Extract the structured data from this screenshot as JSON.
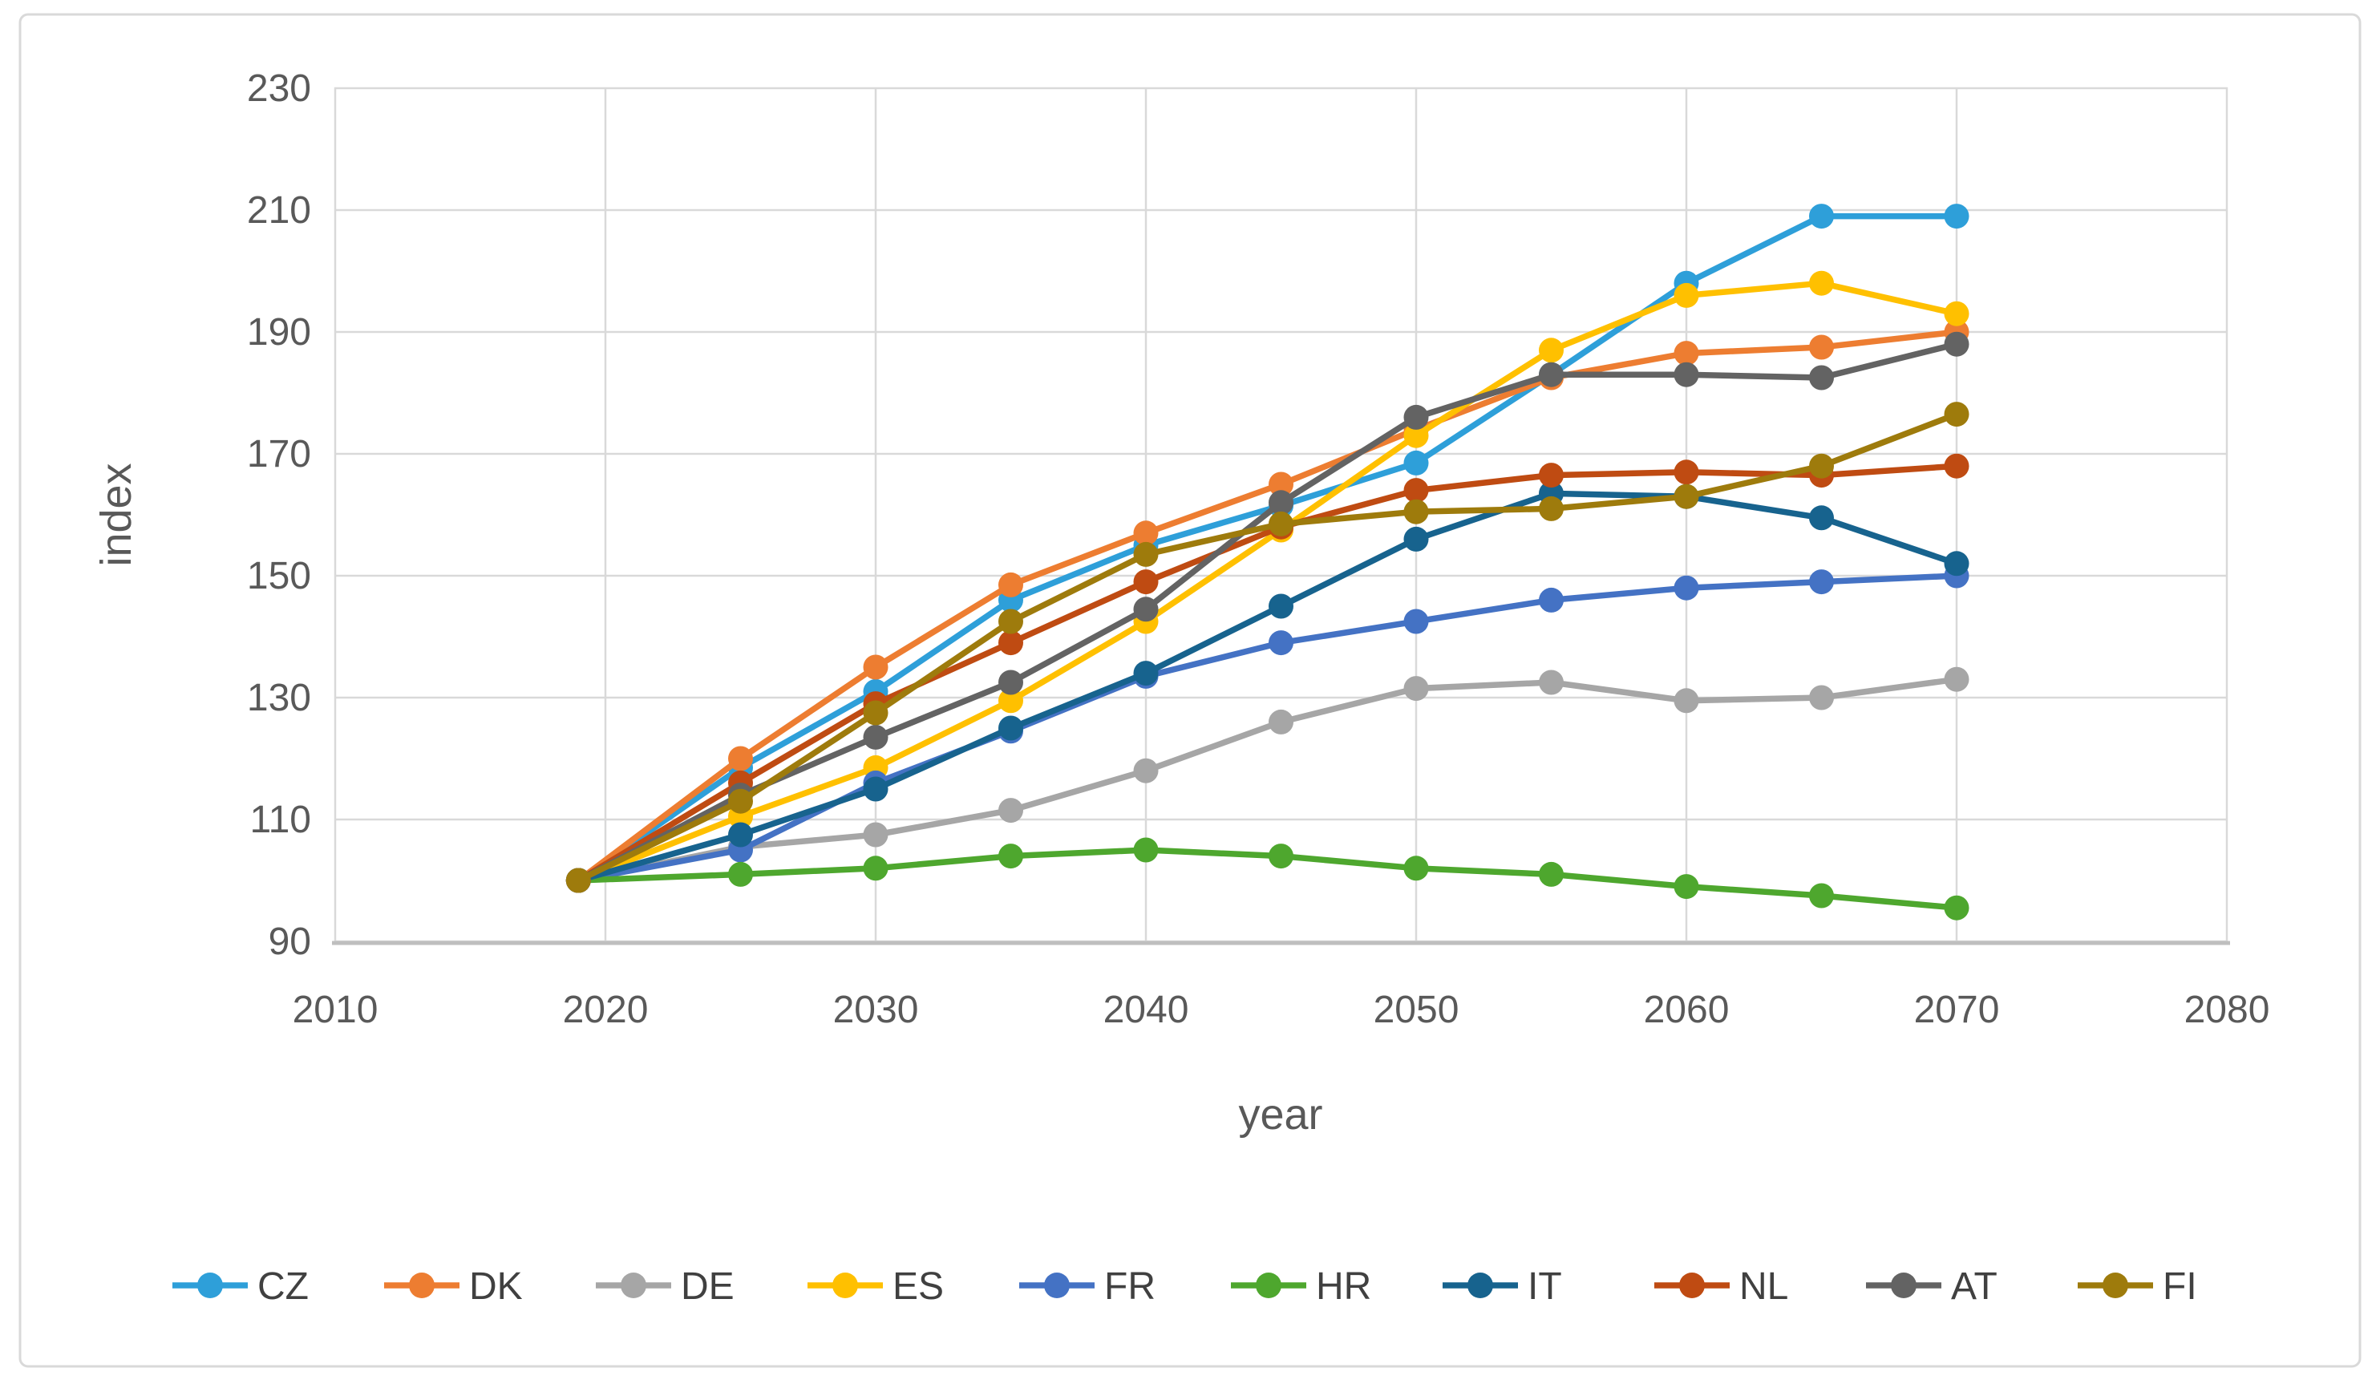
{
  "figure": {
    "background": "#FFFFFF",
    "frame_border_color": "#D9D9D9",
    "plot_border_color": "#D9D9D9",
    "gridline_color": "#D9D9D9",
    "axis_line_color": "#BFBFBF",
    "tick_label_color": "#595959",
    "axis_title_color": "#595959",
    "legend_text_color": "#404040"
  },
  "chart_data": {
    "type": "line",
    "xlabel": "year",
    "ylabel": "index",
    "xlim": [
      2010,
      2080
    ],
    "ylim": [
      90,
      230
    ],
    "x_ticks": [
      2010,
      2020,
      2030,
      2040,
      2050,
      2060,
      2070,
      2080
    ],
    "y_ticks": [
      90,
      110,
      130,
      150,
      170,
      190,
      210,
      230
    ],
    "grid": true,
    "legend_position": "bottom",
    "marker": "circle",
    "x": [
      2019,
      2025,
      2030,
      2035,
      2040,
      2045,
      2050,
      2055,
      2060,
      2065,
      2070
    ],
    "series": [
      {
        "name": "CZ",
        "color": "#2E9FD9",
        "values": [
          100,
          118.5,
          131,
          146,
          155,
          161.5,
          168.5,
          183,
          198,
          209,
          209
        ]
      },
      {
        "name": "DK",
        "color": "#ED7D31",
        "values": [
          100,
          120,
          135,
          148.5,
          157,
          165,
          174,
          182.5,
          186.5,
          187.5,
          190
        ]
      },
      {
        "name": "DE",
        "color": "#A6A6A6",
        "values": [
          100,
          105.5,
          107.5,
          111.5,
          118,
          126,
          131.5,
          132.5,
          129.5,
          130,
          133
        ]
      },
      {
        "name": "ES",
        "color": "#FFC000",
        "values": [
          100,
          110.5,
          118.5,
          129.5,
          142.5,
          157.5,
          173,
          187,
          196,
          198,
          193
        ]
      },
      {
        "name": "FR",
        "color": "#4472C4",
        "values": [
          100,
          105,
          116,
          124.5,
          133.5,
          139,
          142.5,
          146,
          148,
          149,
          150
        ]
      },
      {
        "name": "HR",
        "color": "#4EA72E",
        "values": [
          100,
          101,
          102,
          104,
          105,
          104,
          102,
          101,
          99,
          97.5,
          95.5
        ]
      },
      {
        "name": "IT",
        "color": "#17638E",
        "values": [
          100,
          107.5,
          115,
          125,
          134,
          145,
          156,
          163.5,
          163,
          159.5,
          152
        ]
      },
      {
        "name": "NL",
        "color": "#BF4B12",
        "values": [
          100,
          116,
          129,
          139,
          149,
          158,
          164,
          166.5,
          167,
          166.5,
          168
        ]
      },
      {
        "name": "AT",
        "color": "#636363",
        "values": [
          100,
          114,
          123.5,
          132.5,
          144.5,
          162,
          176,
          183,
          183,
          182.5,
          188
        ]
      },
      {
        "name": "FI",
        "color": "#9E7B0C",
        "values": [
          100,
          113,
          127.5,
          142.5,
          153.5,
          158.5,
          160.5,
          161,
          163,
          168,
          176.5
        ]
      }
    ],
    "legend_labels": [
      "CZ",
      "DK",
      "DE",
      "ES",
      "FR",
      "HR",
      "IT",
      "NL",
      "AT",
      "FI"
    ]
  }
}
